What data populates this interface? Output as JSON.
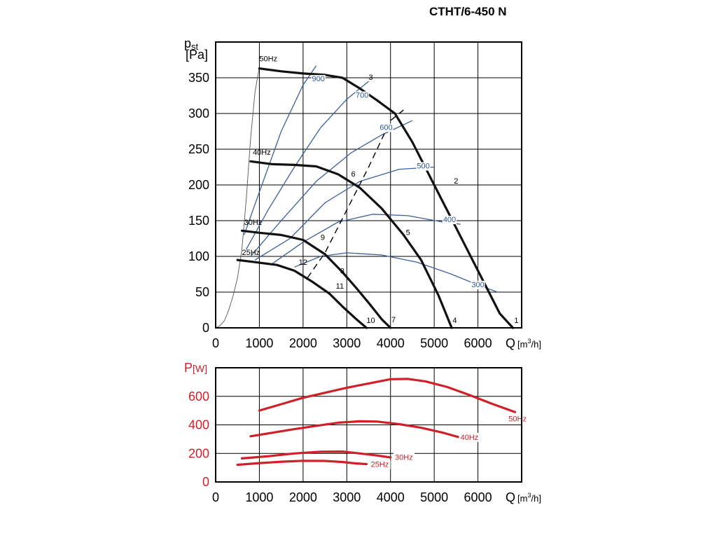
{
  "title": "CTHT/6-450 N",
  "chart_data": [
    {
      "type": "line",
      "ylabel_main": "p",
      "ylabel_sub": "st",
      "yunit": "[Pa]",
      "xlabel": "Q",
      "xunit_pre": "[m",
      "xunit_sup": "3",
      "xunit_post": "/h]",
      "xlim": [
        0,
        7000
      ],
      "ylim": [
        0,
        400
      ],
      "grid": true,
      "x_ticks": [
        0,
        1000,
        2000,
        3000,
        4000,
        5000,
        6000
      ],
      "x_tick_labels": [
        "0",
        "1000",
        "2000",
        "3000",
        "4000",
        "5000",
        "6000"
      ],
      "y_ticks": [
        0,
        50,
        100,
        150,
        200,
        250,
        300,
        350
      ],
      "y_tick_labels": [
        "0",
        "50",
        "100",
        "150",
        "200",
        "250",
        "300",
        "350"
      ],
      "speed_curves": [
        {
          "name": "50Hz",
          "points": [
            [
              1000,
              363
            ],
            [
              1500,
              359
            ],
            [
              2000,
              356
            ],
            [
              2500,
              354
            ],
            [
              2900,
              350
            ],
            [
              3300,
              335
            ],
            [
              3700,
              318
            ],
            [
              4100,
              300
            ],
            [
              4500,
              260
            ],
            [
              5000,
              200
            ],
            [
              5500,
              140
            ],
            [
              6000,
              80
            ],
            [
              6500,
              20
            ],
            [
              6800,
              0
            ]
          ]
        },
        {
          "name": "40Hz",
          "points": [
            [
              800,
              233
            ],
            [
              1300,
              229
            ],
            [
              1800,
              228
            ],
            [
              2300,
              226
            ],
            [
              2800,
              215
            ],
            [
              3300,
              196
            ],
            [
              3800,
              167
            ],
            [
              4300,
              130
            ],
            [
              4700,
              95
            ],
            [
              5100,
              45
            ],
            [
              5400,
              0
            ]
          ]
        },
        {
          "name": "30Hz",
          "points": [
            [
              600,
              136
            ],
            [
              1000,
              133
            ],
            [
              1500,
              130
            ],
            [
              2000,
              123
            ],
            [
              2500,
              103
            ],
            [
              2900,
              78
            ],
            [
              3200,
              57
            ],
            [
              3500,
              35
            ],
            [
              3800,
              12
            ],
            [
              4000,
              0
            ]
          ]
        },
        {
          "name": "25Hz",
          "points": [
            [
              500,
              95
            ],
            [
              900,
              92
            ],
            [
              1400,
              88
            ],
            [
              1800,
              80
            ],
            [
              2200,
              65
            ],
            [
              2600,
              48
            ],
            [
              2900,
              30
            ],
            [
              3200,
              13
            ],
            [
              3450,
              0
            ]
          ]
        }
      ],
      "curve_labels": [
        {
          "text": "50Hz",
          "x": 1000,
          "y": 373
        },
        {
          "text": "40Hz",
          "x": 850,
          "y": 242
        },
        {
          "text": "30Hz",
          "x": 650,
          "y": 144
        },
        {
          "text": "25Hz",
          "x": 600,
          "y": 102
        }
      ],
      "efficiency_curves": [
        {
          "name": "900",
          "points": [
            [
              650,
              130
            ],
            [
              1000,
              190
            ],
            [
              1500,
              275
            ],
            [
              2000,
              340
            ],
            [
              2300,
              367
            ]
          ]
        },
        {
          "name": "700",
          "points": [
            [
              700,
              110
            ],
            [
              1200,
              165
            ],
            [
              1800,
              225
            ],
            [
              2400,
              280
            ],
            [
              3000,
              320
            ],
            [
              3500,
              345
            ]
          ]
        },
        {
          "name": "600",
          "points": [
            [
              800,
              100
            ],
            [
              1500,
              150
            ],
            [
              2300,
              205
            ],
            [
              3100,
              245
            ],
            [
              3800,
              270
            ],
            [
              4500,
              290
            ]
          ]
        },
        {
          "name": "500",
          "points": [
            [
              900,
              95
            ],
            [
              1700,
              125
            ],
            [
              2500,
              175
            ],
            [
              3300,
              205
            ],
            [
              4200,
              222
            ],
            [
              5000,
              225
            ]
          ]
        },
        {
          "name": "400",
          "points": [
            [
              1300,
              90
            ],
            [
              2000,
              120
            ],
            [
              2800,
              148
            ],
            [
              3600,
              159
            ],
            [
              4400,
              157
            ],
            [
              5200,
              148
            ],
            [
              5600,
              145
            ]
          ]
        },
        {
          "name": "300",
          "points": [
            [
              1800,
              85
            ],
            [
              2400,
              100
            ],
            [
              3000,
              105
            ],
            [
              3800,
              102
            ],
            [
              4600,
              92
            ],
            [
              5400,
              75
            ],
            [
              6000,
              60
            ],
            [
              6450,
              50
            ]
          ]
        }
      ],
      "efficiency_labels": [
        {
          "text": "900",
          "x": 2350,
          "y": 345
        },
        {
          "text": "700",
          "x": 3350,
          "y": 322
        },
        {
          "text": "600",
          "x": 3900,
          "y": 277
        },
        {
          "text": "500",
          "x": 4750,
          "y": 223
        },
        {
          "text": "400",
          "x": 5350,
          "y": 148
        },
        {
          "text": "300",
          "x": 6000,
          "y": 57
        }
      ],
      "system_curve": [
        [
          0,
          0
        ],
        [
          100,
          3
        ],
        [
          200,
          10
        ],
        [
          300,
          25
        ],
        [
          400,
          45
        ],
        [
          500,
          70
        ],
        [
          600,
          110
        ],
        [
          700,
          180
        ],
        [
          800,
          265
        ],
        [
          900,
          330
        ],
        [
          1000,
          365
        ]
      ],
      "optimal_line": [
        [
          2100,
          70
        ],
        [
          2500,
          105
        ],
        [
          3000,
          165
        ],
        [
          3500,
          225
        ],
        [
          4000,
          290
        ],
        [
          4300,
          305
        ]
      ],
      "point_labels": [
        {
          "text": "1",
          "x": 6830,
          "y": 7
        },
        {
          "text": "2",
          "x": 5450,
          "y": 202
        },
        {
          "text": "3",
          "x": 3500,
          "y": 347
        },
        {
          "text": "4",
          "x": 5420,
          "y": 7
        },
        {
          "text": "5",
          "x": 4350,
          "y": 130
        },
        {
          "text": "6",
          "x": 3100,
          "y": 212
        },
        {
          "text": "7",
          "x": 4020,
          "y": 8
        },
        {
          "text": "8",
          "x": 2850,
          "y": 76
        },
        {
          "text": "9",
          "x": 2400,
          "y": 123
        },
        {
          "text": "10",
          "x": 3450,
          "y": 7
        },
        {
          "text": "11",
          "x": 2750,
          "y": 55
        },
        {
          "text": "12",
          "x": 1900,
          "y": 88
        }
      ]
    },
    {
      "type": "line",
      "ylabel_main": "P",
      "yunit": "[W]",
      "xlabel": "Q",
      "xunit_pre": "[m",
      "xunit_sup": "3",
      "xunit_post": "/h]",
      "xlim": [
        0,
        7000
      ],
      "ylim": [
        0,
        800
      ],
      "grid": true,
      "x_ticks": [
        0,
        1000,
        2000,
        3000,
        4000,
        5000,
        6000
      ],
      "x_tick_labels": [
        "0",
        "1000",
        "2000",
        "3000",
        "4000",
        "5000",
        "6000"
      ],
      "y_ticks": [
        0,
        200,
        400,
        600
      ],
      "y_tick_labels": [
        "0",
        "200",
        "400",
        "600"
      ],
      "color": "#d0202a",
      "series": [
        {
          "name": "50Hz",
          "points": [
            [
              1000,
              500
            ],
            [
              1500,
              545
            ],
            [
              2000,
              590
            ],
            [
              2500,
              625
            ],
            [
              3000,
              660
            ],
            [
              3500,
              690
            ],
            [
              4000,
              720
            ],
            [
              4400,
              722
            ],
            [
              4800,
              705
            ],
            [
              5300,
              665
            ],
            [
              5800,
              610
            ],
            [
              6300,
              550
            ],
            [
              6850,
              490
            ]
          ],
          "label_x": 6700,
          "label_y": 425
        },
        {
          "name": "40Hz",
          "points": [
            [
              800,
              320
            ],
            [
              1300,
              345
            ],
            [
              1800,
              370
            ],
            [
              2300,
              393
            ],
            [
              2800,
              415
            ],
            [
              3300,
              425
            ],
            [
              3700,
              423
            ],
            [
              4200,
              405
            ],
            [
              4700,
              380
            ],
            [
              5200,
              345
            ],
            [
              5550,
              315
            ]
          ],
          "label_x": 5600,
          "label_y": 295
        },
        {
          "name": "30Hz",
          "points": [
            [
              600,
              165
            ],
            [
              1200,
              180
            ],
            [
              1800,
              200
            ],
            [
              2400,
              212
            ],
            [
              2900,
              213
            ],
            [
              3300,
              200
            ],
            [
              3700,
              185
            ],
            [
              4000,
              172
            ]
          ],
          "label_x": 4100,
          "label_y": 155
        },
        {
          "name": "25Hz",
          "points": [
            [
              500,
              120
            ],
            [
              1000,
              132
            ],
            [
              1500,
              142
            ],
            [
              2000,
              148
            ],
            [
              2500,
              147
            ],
            [
              2900,
              140
            ],
            [
              3200,
              130
            ],
            [
              3450,
              125
            ]
          ],
          "label_x": 3550,
          "label_y": 105
        }
      ]
    }
  ]
}
